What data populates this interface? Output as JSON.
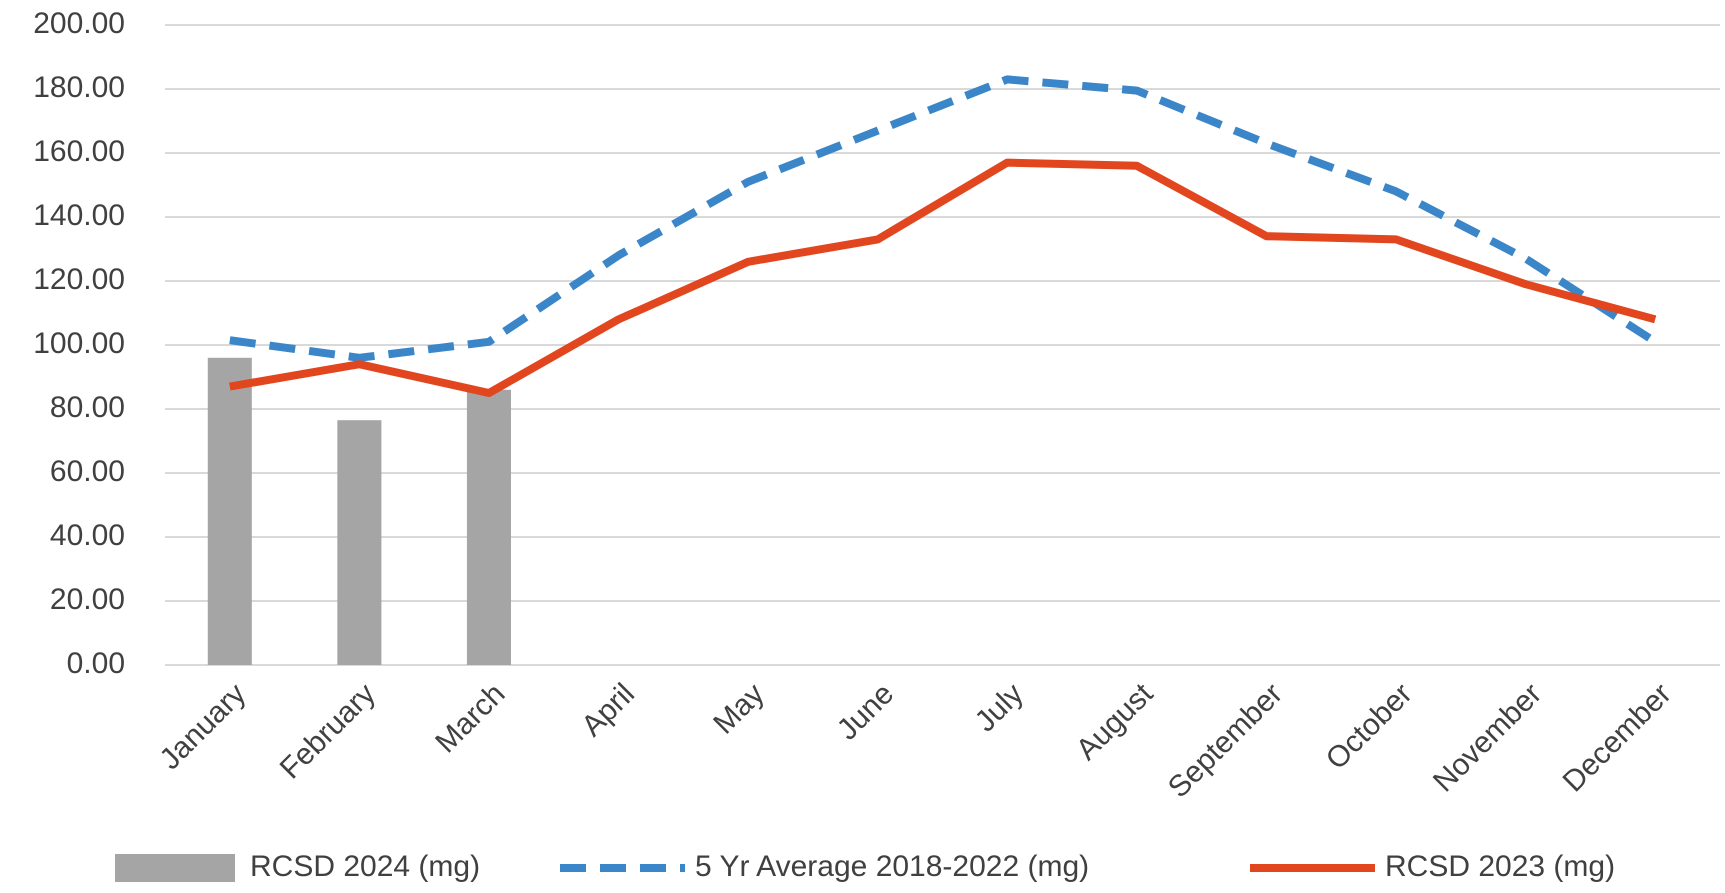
{
  "chart_data": {
    "type": "bar",
    "categories": [
      "January",
      "February",
      "March",
      "April",
      "May",
      "June",
      "July",
      "August",
      "September",
      "October",
      "November",
      "December"
    ],
    "series": [
      {
        "name": "RCSD 2024 (mg)",
        "type": "bar",
        "color": "#a5a5a5",
        "values": [
          96,
          76.5,
          86,
          null,
          null,
          null,
          null,
          null,
          null,
          null,
          null,
          null
        ]
      },
      {
        "name": "5 Yr Average 2018-2022 (mg)",
        "type": "line",
        "dashed": true,
        "color": "#3a86c8",
        "values": [
          101.5,
          96,
          101,
          128,
          151,
          167,
          183,
          179.5,
          163,
          148,
          127,
          101
        ]
      },
      {
        "name": "RCSD 2023 (mg)",
        "type": "line",
        "color": "#e2461e",
        "values": [
          87,
          94,
          85,
          108,
          126,
          133,
          157,
          156,
          134,
          133,
          119,
          108
        ]
      }
    ],
    "ylim": [
      0,
      200
    ],
    "yticks": [
      {
        "value": 0,
        "label": "0.00"
      },
      {
        "value": 20,
        "label": "20.00"
      },
      {
        "value": 40,
        "label": "40.00"
      },
      {
        "value": 60,
        "label": "60.00"
      },
      {
        "value": 80,
        "label": "80.00"
      },
      {
        "value": 100,
        "label": "100.00"
      },
      {
        "value": 120,
        "label": "120.00"
      },
      {
        "value": 140,
        "label": "140.00"
      },
      {
        "value": 160,
        "label": "160.00"
      },
      {
        "value": 180,
        "label": "180.00"
      },
      {
        "value": 200,
        "label": "200.00"
      }
    ],
    "grid": true,
    "legend": "bottom"
  }
}
